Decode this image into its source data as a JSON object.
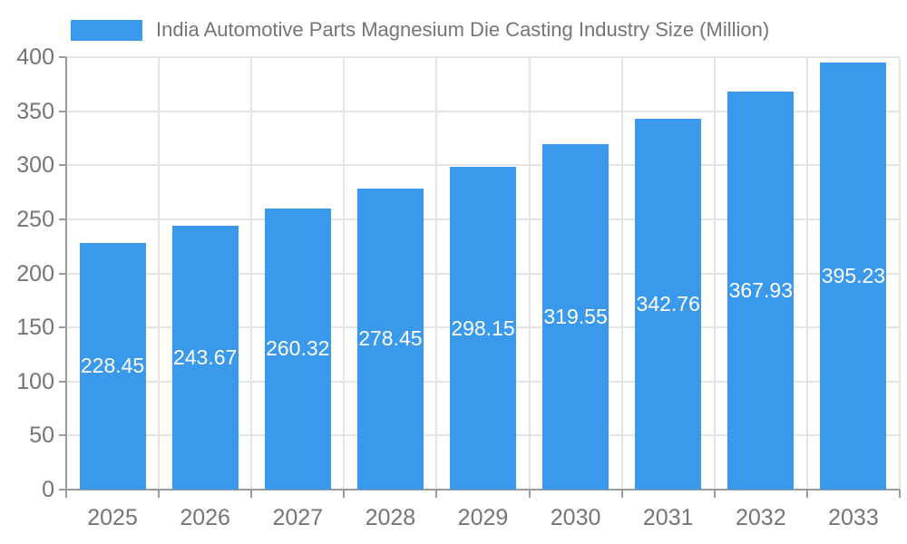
{
  "legend": {
    "label": "India Automotive Parts Magnesium Die Casting Industry Size (Million)"
  },
  "chart_data": {
    "type": "bar",
    "title": "India Automotive Parts Magnesium Die Casting Industry Size (Million)",
    "categories": [
      "2025",
      "2026",
      "2027",
      "2028",
      "2029",
      "2030",
      "2031",
      "2032",
      "2033"
    ],
    "values": [
      228.45,
      243.67,
      260.32,
      278.45,
      298.15,
      319.55,
      342.76,
      367.93,
      395.23
    ],
    "value_labels": [
      "228.45",
      "243.67",
      "260.32",
      "278.45",
      "298.15",
      "319.55",
      "342.76",
      "367.93",
      "395.23"
    ],
    "xlabel": "",
    "ylabel": "",
    "ylim": [
      0,
      400
    ],
    "yticks": [
      0,
      50,
      100,
      150,
      200,
      250,
      300,
      350,
      400
    ],
    "grid": true,
    "legend_position": "top-left",
    "bar_color": "#3b99ec",
    "value_label_color": "#ffffff",
    "axis_color": "#9a9a9a",
    "grid_color": "#e4e4e4",
    "text_color": "#757575"
  }
}
